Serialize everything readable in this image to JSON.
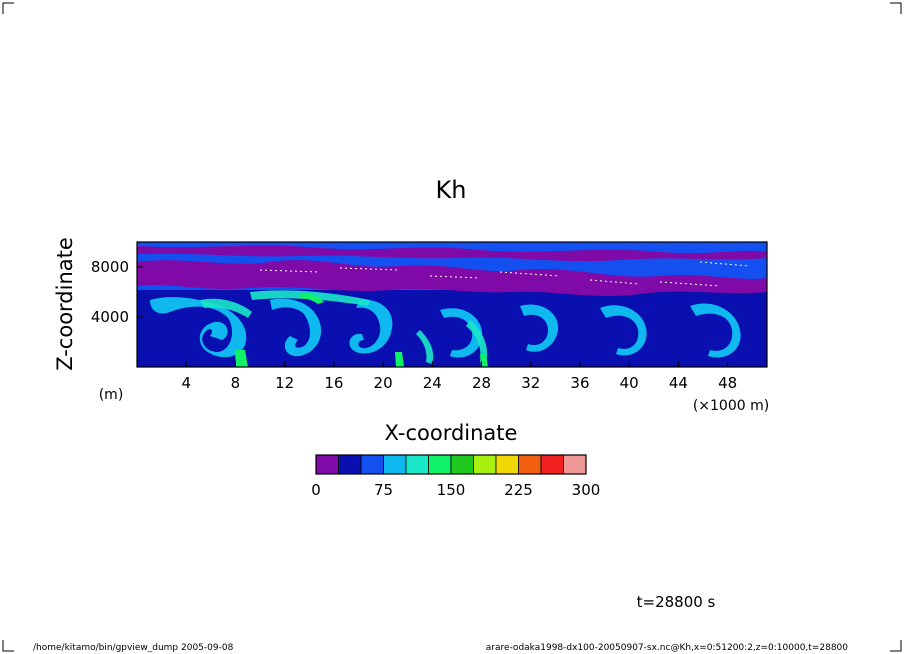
{
  "chart_data": {
    "type": "heatmap",
    "title": "Kh",
    "xlabel": "X-coordinate",
    "ylabel": "Z-coordinate",
    "x_unit": "(×1000 m)",
    "y_unit": "(m)",
    "xlim": [
      0,
      51.2
    ],
    "ylim": [
      0,
      10000
    ],
    "x_ticks": [
      4,
      8,
      12,
      16,
      20,
      24,
      28,
      32,
      36,
      40,
      44,
      48
    ],
    "y_ticks": [
      4000,
      8000
    ],
    "colorbar": {
      "levels": [
        0,
        25,
        50,
        75,
        100,
        125,
        150,
        175,
        200,
        225,
        250,
        275,
        300
      ],
      "tick_labels": [
        "0",
        "75",
        "150",
        "225",
        "300"
      ],
      "tick_values": [
        0,
        75,
        150,
        225,
        300
      ],
      "colors": [
        "#7f0aa8",
        "#0a0fb0",
        "#1450f0",
        "#10b8f0",
        "#18e8c8",
        "#10f068",
        "#20c820",
        "#a8f010",
        "#f0d800",
        "#f06010",
        "#f02020",
        "#f09898"
      ]
    }
  },
  "annotations": {
    "time": "t=28800 s",
    "footer_left": "/home/kitamo/bin/gpview_dump  2005-09-08",
    "footer_right": "arare-odaka1998-dx100-20050907-sx.nc@Kh,x=0:51200:2,z=0:10000,t=28800"
  }
}
